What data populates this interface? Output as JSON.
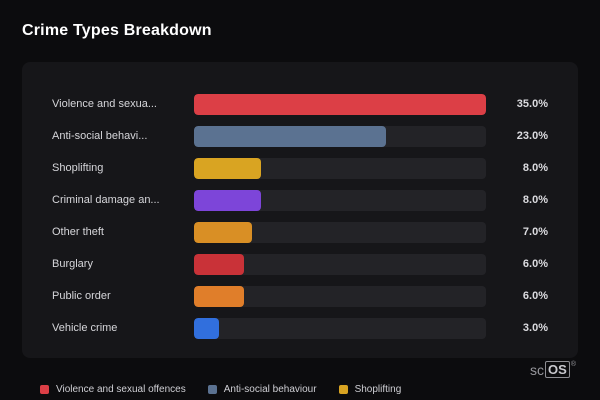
{
  "page": {
    "title": "Crime Types Breakdown",
    "brand": {
      "prefix": "sc",
      "boxed": "OS",
      "reg": "®"
    }
  },
  "colors": {
    "background": "#0c0c0e",
    "panel": "#161619",
    "track": "#232327",
    "title_text": "#ffffff",
    "label_text": "#d6d6da",
    "value_text": "#dcdce0"
  },
  "chart_data": {
    "type": "bar",
    "orientation": "horizontal",
    "title": "Crime Types Breakdown",
    "xlabel": "",
    "ylabel": "",
    "xlim": [
      0,
      35
    ],
    "grid": false,
    "legend_position": "bottom-left",
    "categories": [
      "Violence and sexual offences",
      "Anti-social behaviour",
      "Shoplifting",
      "Criminal damage and arson",
      "Other theft",
      "Burglary",
      "Public order",
      "Vehicle crime"
    ],
    "display_labels": [
      "Violence and sexua...",
      "Anti-social behavi...",
      "Shoplifting",
      "Criminal damage an...",
      "Other theft",
      "Burglary",
      "Public order",
      "Vehicle crime"
    ],
    "values": [
      35.0,
      23.0,
      8.0,
      8.0,
      7.0,
      6.0,
      6.0,
      3.0
    ],
    "value_labels": [
      "35.0%",
      "23.0%",
      "8.0%",
      "8.0%",
      "7.0%",
      "6.0%",
      "6.0%",
      "3.0%"
    ],
    "bar_colors": [
      "#dc3f46",
      "#5b7291",
      "#d9a422",
      "#7d45d9",
      "#d98f25",
      "#c93238",
      "#e07e2a",
      "#316fdd"
    ],
    "legend": [
      {
        "label": "Violence and sexual offences",
        "color": "#dc3f46"
      },
      {
        "label": "Anti-social behaviour",
        "color": "#5b7291"
      },
      {
        "label": "Shoplifting",
        "color": "#d9a422"
      }
    ]
  }
}
